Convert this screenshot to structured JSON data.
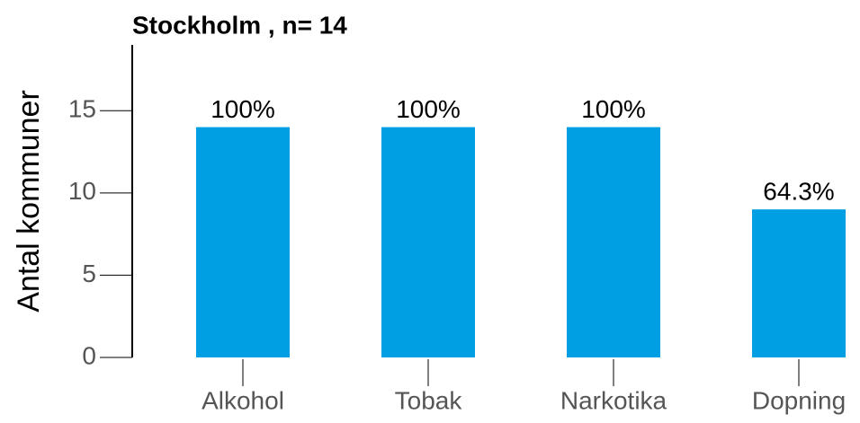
{
  "chart_data": {
    "type": "bar",
    "title": "Stockholm , n= 14",
    "ylabel": "Antal kommuner",
    "categories": [
      "Alkohol",
      "Tobak",
      "Narkotika",
      "Dopning"
    ],
    "values": [
      14,
      14,
      14,
      9
    ],
    "value_labels": [
      "100%",
      "100%",
      "100%",
      "64.3%"
    ],
    "color": "#009ee3",
    "ylim": [
      0,
      19
    ],
    "yticks": [
      0,
      5,
      10,
      15
    ],
    "grid": false
  }
}
